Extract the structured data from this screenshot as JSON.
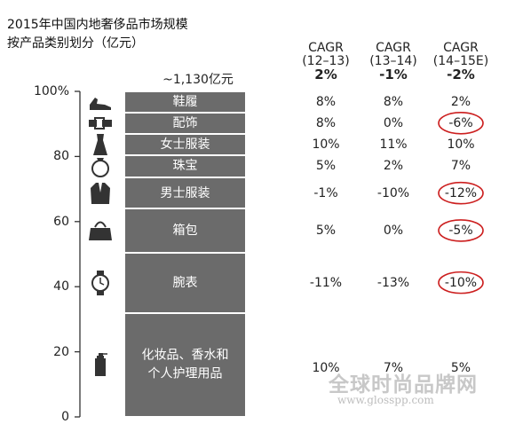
{
  "title_line1": "2015年中国内地奢侈品市场规模",
  "title_line2": "按产品类别划分（亿元）",
  "total_label": "~1,130亿元",
  "watermark": {
    "main": "全球时尚品牌网",
    "url": "www.glosspp.com"
  },
  "colors": {
    "bar": "#6b6b6b",
    "highlight": "#cc1f1f",
    "axis": "#333333"
  },
  "column_headers": [
    {
      "line1": "CAGR",
      "line2": "(12–13)",
      "overall": "2%"
    },
    {
      "line1": "CAGR",
      "line2": "(13–14)",
      "overall": "-1%"
    },
    {
      "line1": "CAGR",
      "line2": "(14–15E)",
      "overall": "-2%"
    }
  ],
  "chart_data": {
    "type": "bar",
    "title": "2015年中国内地奢侈品市场规模 按产品类别划分（亿元）",
    "stacked": true,
    "ylim": [
      0,
      100
    ],
    "y_ticks": [
      "0",
      "20",
      "40",
      "60",
      "80",
      "100%"
    ],
    "segments": [
      {
        "category": "鞋履",
        "icon": "shoes-icon",
        "share_start": 100,
        "share_end": 93.5,
        "cagr": [
          "8%",
          "8%",
          "2%"
        ],
        "highlight": [
          false,
          false,
          false
        ]
      },
      {
        "category": "配饰",
        "icon": "belt-icon",
        "share_start": 93.5,
        "share_end": 87,
        "cagr": [
          "8%",
          "0%",
          "-6%"
        ],
        "highlight": [
          false,
          false,
          true
        ]
      },
      {
        "category": "女士服装",
        "icon": "dress-icon",
        "share_start": 87,
        "share_end": 80.5,
        "cagr": [
          "10%",
          "11%",
          "10%"
        ],
        "highlight": [
          false,
          false,
          false
        ]
      },
      {
        "category": "珠宝",
        "icon": "ring-icon",
        "share_start": 80.5,
        "share_end": 73.5,
        "cagr": [
          "5%",
          "2%",
          "7%"
        ],
        "highlight": [
          false,
          false,
          false
        ]
      },
      {
        "category": "男士服装",
        "icon": "suit-icon",
        "share_start": 73.5,
        "share_end": 64,
        "cagr": [
          "-1%",
          "-10%",
          "-12%"
        ],
        "highlight": [
          false,
          false,
          true
        ]
      },
      {
        "category": "箱包",
        "icon": "handbag-icon",
        "share_start": 64,
        "share_end": 50.5,
        "cagr": [
          "5%",
          "0%",
          "-5%"
        ],
        "highlight": [
          false,
          false,
          true
        ]
      },
      {
        "category": "腕表",
        "icon": "watch-icon",
        "share_start": 50.5,
        "share_end": 32,
        "cagr": [
          "-11%",
          "-13%",
          "-10%"
        ],
        "highlight": [
          false,
          false,
          true
        ]
      },
      {
        "category": "化妆品、香水和\n个人护理用品",
        "icon": "perfume-icon",
        "share_start": 32,
        "share_end": 0,
        "cagr": [
          "10%",
          "7%",
          "5%"
        ],
        "highlight": [
          false,
          false,
          false
        ]
      }
    ]
  }
}
